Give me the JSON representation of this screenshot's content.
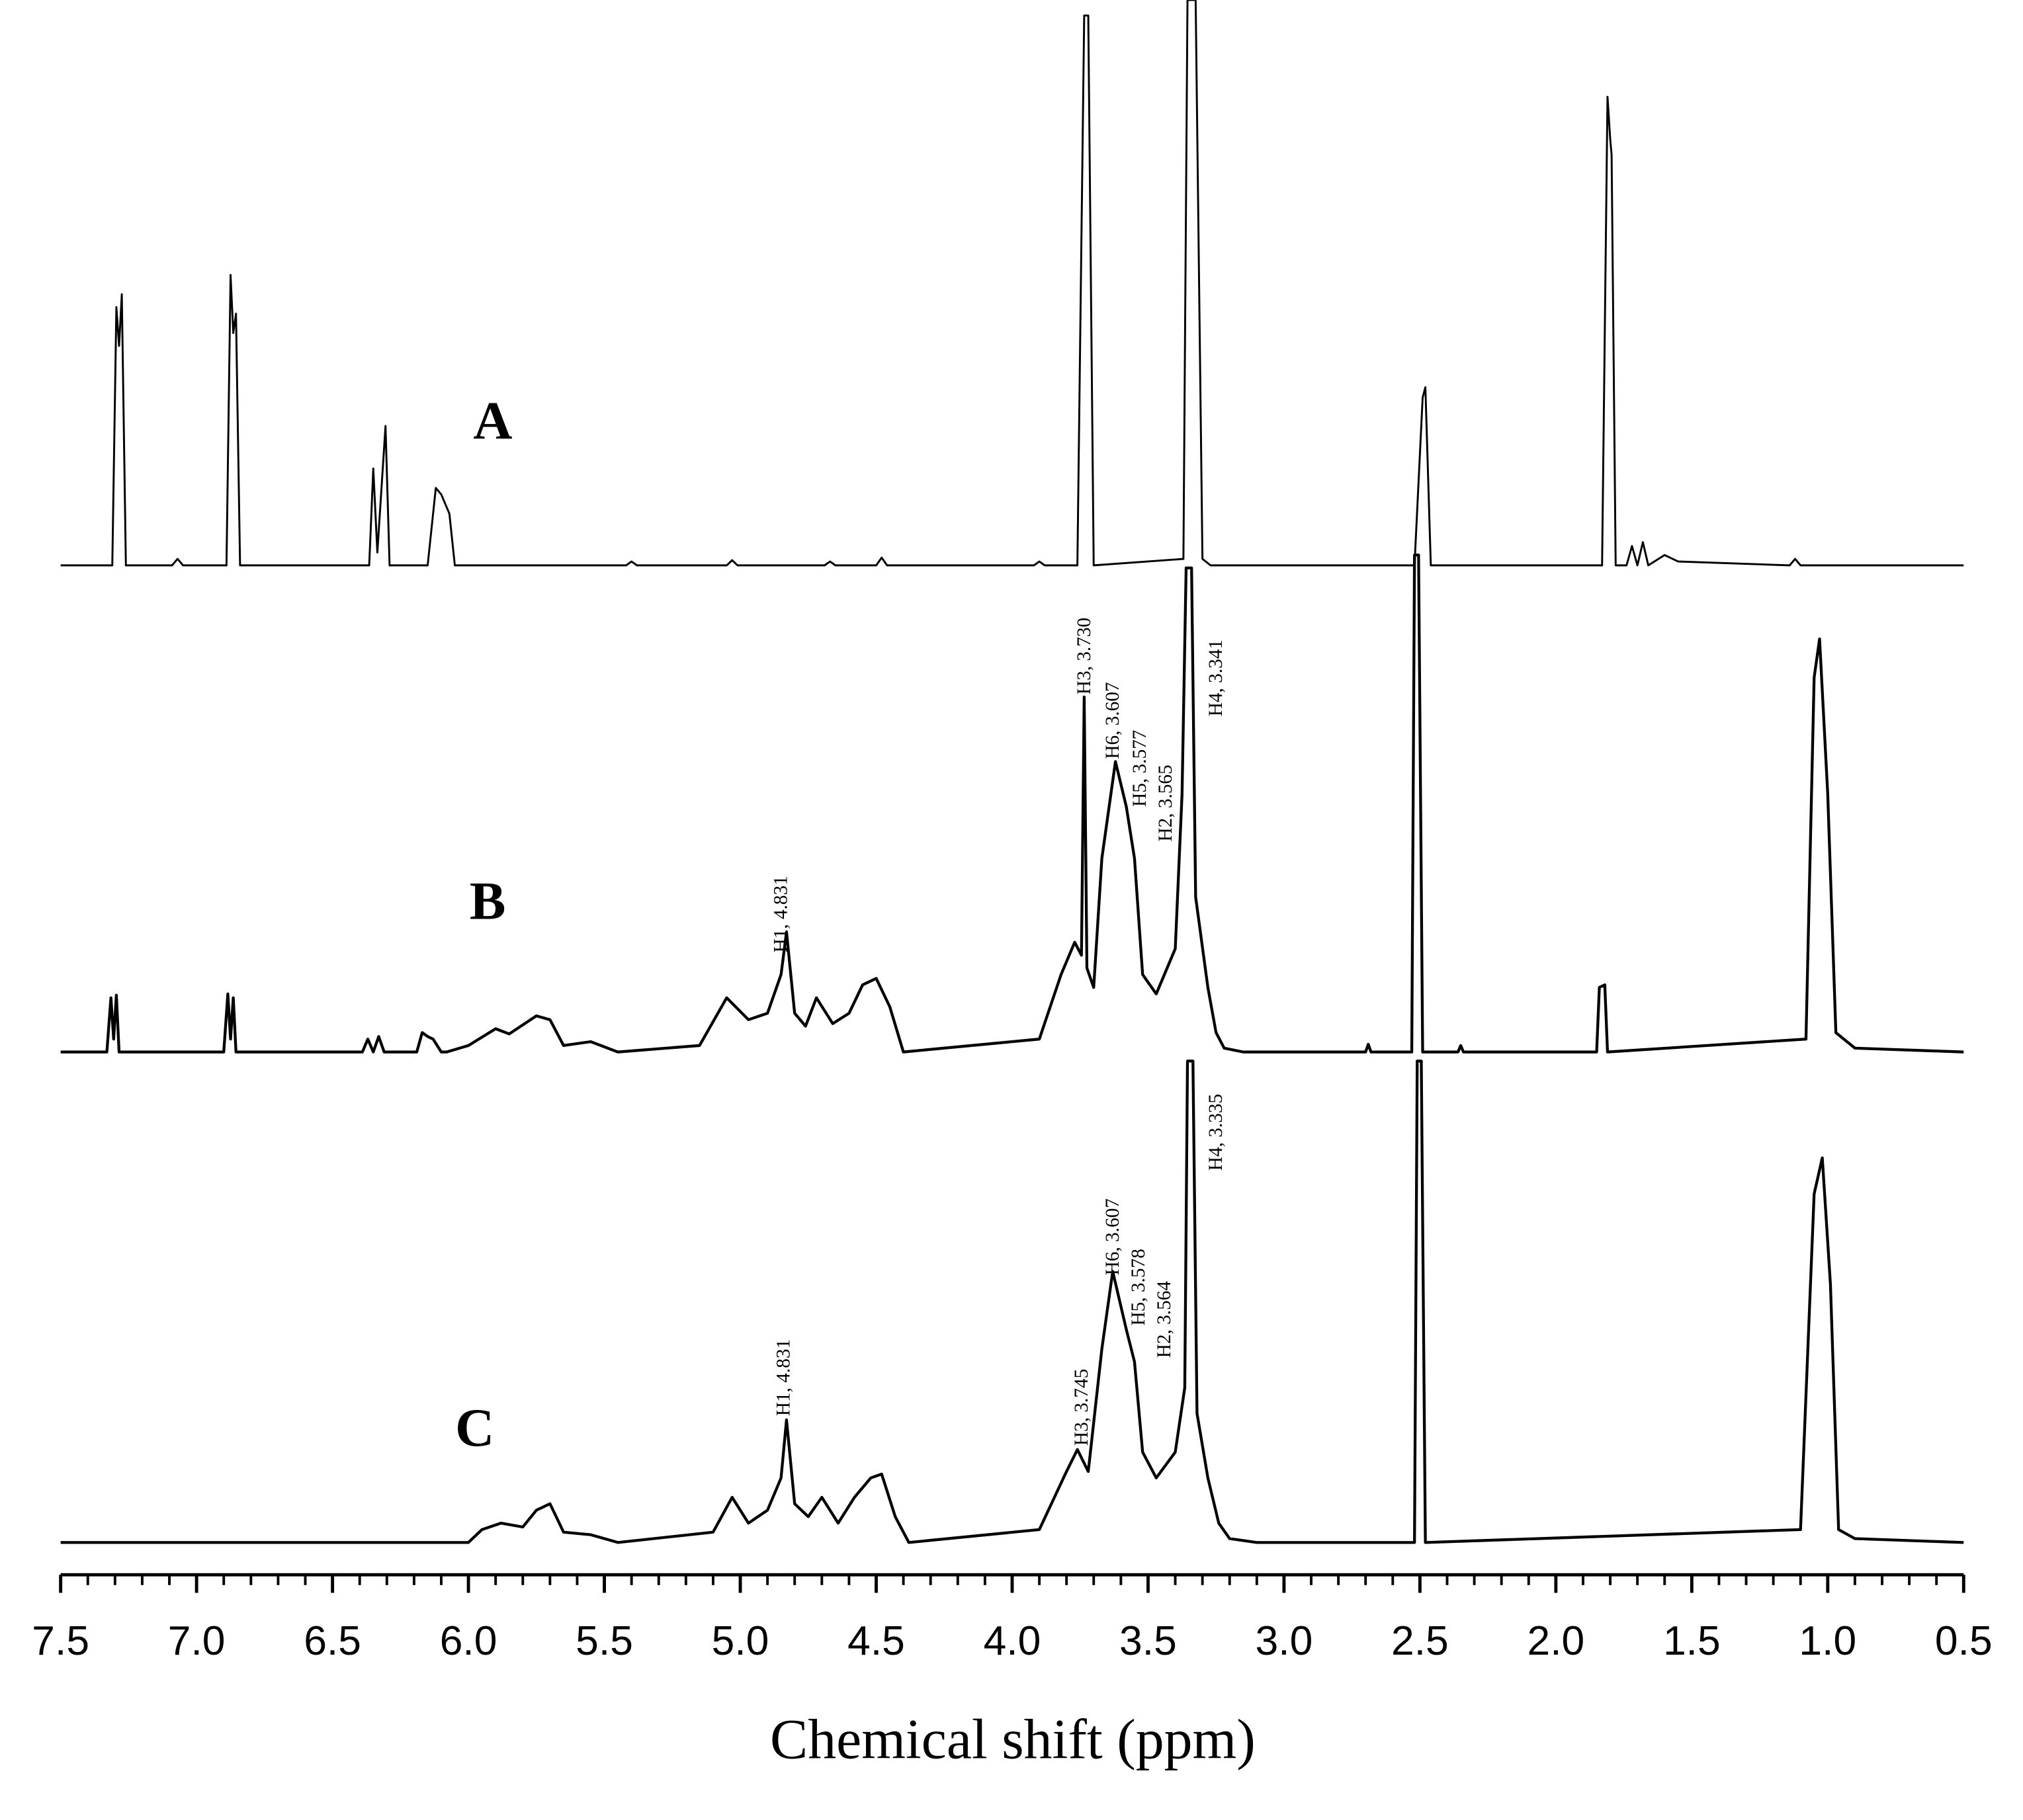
{
  "chart_data": {
    "type": "line",
    "xlabel": "Chemical shift (ppm)",
    "xlim": [
      7.5,
      0.5
    ],
    "xticks": [
      7.5,
      {
        "value": 7,
        "label": "7.0"
      },
      6.5,
      {
        "value": 6,
        "label": "6.0"
      },
      5.5,
      {
        "value": 5,
        "label": "5.0"
      },
      4.5,
      {
        "value": 4,
        "label": "4.0"
      },
      3.5,
      {
        "value": 3,
        "label": "3.0"
      },
      2.5,
      {
        "value": 2,
        "label": "2.0"
      },
      1.5,
      {
        "value": 1,
        "label": "1.0"
      },
      0.5
    ],
    "series": [
      {
        "name": "A",
        "color": "#000000",
        "x": [
          7.5,
          7.31,
          7.295,
          7.285,
          7.275,
          7.26,
          7.09,
          7.07,
          7.05,
          6.89,
          6.875,
          6.865,
          6.855,
          6.84,
          6.365,
          6.35,
          6.335,
          6.305,
          6.29,
          6.15,
          6.12,
          6.1,
          6.07,
          6.05,
          5.42,
          5.4,
          5.38,
          5.05,
          5.03,
          5.01,
          4.69,
          4.67,
          4.65,
          4.5,
          4.48,
          4.46,
          3.92,
          3.9,
          3.88,
          3.76,
          3.735,
          3.72,
          3.7,
          3.37,
          3.355,
          3.325,
          3.3,
          3.27,
          2.52,
          2.49,
          2.48,
          2.46,
          1.83,
          1.81,
          1.8,
          1.795,
          1.78,
          1.74,
          1.72,
          1.7,
          1.68,
          1.66,
          1.6,
          1.55,
          1.14,
          1.12,
          1.1,
          0.5
        ],
        "values": [
          0,
          0,
          200,
          170,
          210,
          0,
          0,
          5,
          0,
          0,
          225,
          180,
          195,
          0,
          0,
          75,
          10,
          108,
          0,
          0,
          60,
          55,
          40,
          0,
          0,
          3,
          0,
          0,
          4,
          0,
          0,
          3,
          0,
          0,
          6,
          0,
          0,
          3,
          0,
          0,
          426,
          426,
          0,
          5,
          438,
          438,
          5,
          0,
          0,
          130,
          138,
          0,
          0,
          363,
          330,
          318,
          0,
          0,
          15,
          0,
          18,
          0,
          8,
          3,
          0,
          5,
          0,
          0
        ]
      },
      {
        "name": "B",
        "color": "#000000",
        "x": [
          7.5,
          7.33,
          7.315,
          7.305,
          7.295,
          7.285,
          6.9,
          6.885,
          6.875,
          6.865,
          6.855,
          6.39,
          6.37,
          6.35,
          6.33,
          6.31,
          6.19,
          6.17,
          6.15,
          6.13,
          6.1,
          6.08,
          6.0,
          5.9,
          5.85,
          5.75,
          5.7,
          5.65,
          5.55,
          5.45,
          5.15,
          5.05,
          4.97,
          4.9,
          4.85,
          4.83,
          4.8,
          4.76,
          4.72,
          4.66,
          4.6,
          4.55,
          4.5,
          4.45,
          4.4,
          3.9,
          3.82,
          3.77,
          3.745,
          3.735,
          3.725,
          3.7,
          3.67,
          3.62,
          3.58,
          3.55,
          3.52,
          3.47,
          3.4,
          3.375,
          3.36,
          3.34,
          3.325,
          3.28,
          3.25,
          3.22,
          3.15,
          2.7,
          2.69,
          2.68,
          2.53,
          2.52,
          2.505,
          2.49,
          2.36,
          2.35,
          2.34,
          1.85,
          1.84,
          1.82,
          1.81,
          1.08,
          1.05,
          1.03,
          1.0,
          0.97,
          0.9,
          0.5
        ],
        "values": [
          0,
          0,
          42,
          10,
          44,
          0,
          0,
          45,
          10,
          42,
          0,
          0,
          10,
          0,
          12,
          0,
          0,
          15,
          12,
          10,
          0,
          0,
          5,
          18,
          14,
          28,
          25,
          5,
          8,
          0,
          5,
          42,
          25,
          30,
          60,
          93,
          30,
          20,
          42,
          22,
          30,
          52,
          57,
          35,
          0,
          10,
          60,
          85,
          75,
          275,
          65,
          50,
          150,
          225,
          190,
          150,
          60,
          45,
          80,
          200,
          375,
          375,
          120,
          50,
          15,
          3,
          0,
          0,
          6,
          0,
          0,
          385,
          385,
          0,
          0,
          5,
          0,
          0,
          50,
          52,
          0,
          10,
          290,
          320,
          200,
          15,
          3,
          0
        ]
      },
      {
        "name": "C",
        "color": "#000000",
        "x": [
          7.5,
          6.0,
          5.95,
          5.88,
          5.8,
          5.75,
          5.7,
          5.65,
          5.55,
          5.45,
          5.1,
          5.03,
          4.97,
          4.9,
          4.85,
          4.83,
          4.8,
          4.75,
          4.7,
          4.64,
          4.58,
          4.52,
          4.48,
          4.43,
          4.38,
          3.9,
          3.8,
          3.76,
          3.72,
          3.67,
          3.63,
          3.58,
          3.55,
          3.52,
          3.47,
          3.4,
          3.365,
          3.355,
          3.335,
          3.32,
          3.28,
          3.24,
          3.2,
          3.1,
          2.52,
          2.51,
          2.495,
          2.48,
          1.1,
          1.05,
          1.02,
          0.99,
          0.96,
          0.9,
          0.5
        ],
        "values": [
          0,
          0,
          10,
          15,
          12,
          25,
          30,
          8,
          6,
          0,
          8,
          35,
          15,
          25,
          50,
          95,
          30,
          20,
          35,
          15,
          35,
          50,
          53,
          20,
          0,
          10,
          55,
          72,
          55,
          150,
          210,
          165,
          140,
          70,
          50,
          70,
          120,
          373,
          373,
          100,
          50,
          15,
          3,
          0,
          0,
          373,
          373,
          0,
          10,
          270,
          298,
          200,
          10,
          3,
          0
        ]
      }
    ],
    "annotations": [
      "H1, 4.831",
      "H3, 3.730",
      "H6, 3.607",
      "H5, 3.577",
      "H2, 3.565",
      "H4, 3.341",
      "H1, 4.831",
      "H3, 3.745",
      "H6, 3.607",
      "H5, 3.578",
      "H2, 3.564",
      "H4, 3.335"
    ]
  }
}
